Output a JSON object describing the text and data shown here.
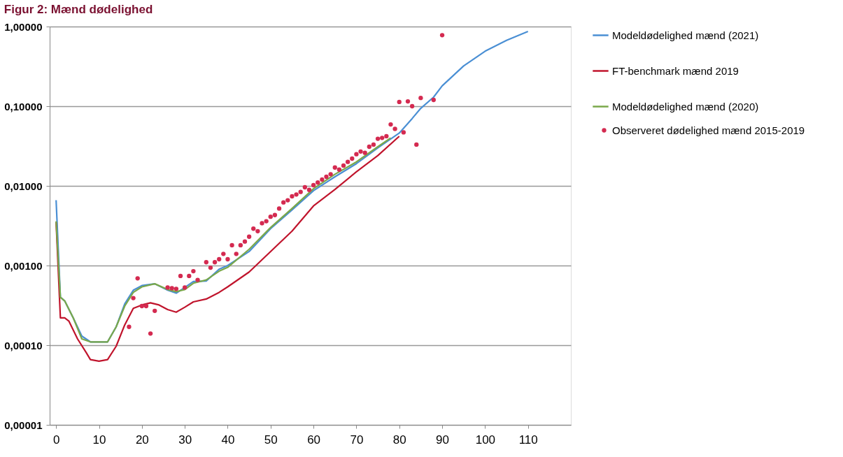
{
  "chart_data": {
    "type": "line",
    "title": "Figur 2: Mænd dødelighed",
    "xlim": [
      -1.5,
      120
    ],
    "xticks": [
      0,
      10,
      20,
      30,
      40,
      50,
      60,
      70,
      80,
      90,
      100,
      110
    ],
    "ylim": [
      1e-05,
      1
    ],
    "log": "y",
    "yticks": [
      {
        "value": 1e-05,
        "label": "0,00001"
      },
      {
        "value": 0.0001,
        "label": "0,00010"
      },
      {
        "value": 0.001,
        "label": "0,00100"
      },
      {
        "value": 0.01,
        "label": "0,01000"
      },
      {
        "value": 0.1,
        "label": "0,10000"
      },
      {
        "value": 1,
        "label": "1,00000"
      }
    ],
    "grid": "y",
    "legend": "right",
    "marker": "none",
    "line_style": "solid",
    "series": [
      {
        "name": "Modeldødelighed mænd (2021)",
        "color": "#4a8fd4",
        "x": [
          0,
          1,
          2,
          4,
          6,
          8,
          10,
          12,
          14,
          16,
          18,
          20,
          23,
          26,
          28,
          30,
          32,
          35,
          38,
          40,
          45,
          50,
          55,
          60,
          65,
          70,
          75,
          80,
          83,
          85,
          88,
          90,
          95,
          100,
          105,
          110
        ],
        "values": [
          0.0066,
          0.0004,
          0.00036,
          0.00022,
          0.00013,
          0.00011,
          0.00011,
          0.00011,
          0.00017,
          0.00033,
          0.00049,
          0.00056,
          0.00059,
          0.00049,
          0.00045,
          0.00053,
          0.00063,
          0.00064,
          0.0009,
          0.001,
          0.0015,
          0.0029,
          0.005,
          0.0087,
          0.013,
          0.019,
          0.03,
          0.046,
          0.07,
          0.094,
          0.13,
          0.18,
          0.32,
          0.49,
          0.67,
          0.87
        ]
      },
      {
        "name": "FT-benchmark mænd 2019",
        "color": "#c0142c",
        "x": [
          0,
          1,
          2,
          3,
          5,
          7,
          8,
          10,
          12,
          14,
          16,
          18,
          20,
          22,
          24,
          26,
          28,
          30,
          32,
          35,
          38,
          40,
          45,
          50,
          55,
          60,
          65,
          70,
          75,
          80
        ],
        "values": [
          0.0035,
          0.00022,
          0.00022,
          0.0002,
          0.00012,
          8.1e-05,
          6.6e-05,
          6.3e-05,
          6.6e-05,
          9.7e-05,
          0.00018,
          0.00029,
          0.00032,
          0.00034,
          0.00032,
          0.00028,
          0.00026,
          0.0003,
          0.00035,
          0.00038,
          0.00046,
          0.00054,
          0.00083,
          0.0015,
          0.0027,
          0.0056,
          0.009,
          0.015,
          0.024,
          0.042
        ]
      },
      {
        "name": "Modeldødelighed mænd (2020)",
        "color": "#7aa84a",
        "x": [
          0,
          1,
          2,
          4,
          6,
          8,
          10,
          12,
          14,
          16,
          18,
          20,
          23,
          26,
          28,
          30,
          32,
          35,
          38,
          40,
          45,
          50,
          55,
          60,
          65,
          70,
          75,
          78
        ],
        "values": [
          0.0036,
          0.0004,
          0.00036,
          0.00022,
          0.00012,
          0.00011,
          0.00011,
          0.00011,
          0.00017,
          0.00031,
          0.00046,
          0.00054,
          0.00059,
          0.0005,
          0.00047,
          0.0005,
          0.0006,
          0.00066,
          0.00085,
          0.00095,
          0.0016,
          0.003,
          0.0052,
          0.0092,
          0.014,
          0.02,
          0.031,
          0.04
        ]
      },
      {
        "name": "Observeret dødelighed mænd 2015-2019",
        "type": "scatter",
        "marker": "circle",
        "color": "#d42a50",
        "x": [
          17,
          18,
          19,
          20,
          21,
          22,
          23,
          26,
          27,
          28,
          29,
          30,
          31,
          32,
          33,
          35,
          36,
          37,
          38,
          39,
          40,
          41,
          42,
          43,
          44,
          45,
          46,
          47,
          48,
          49,
          50,
          51,
          52,
          53,
          54,
          55,
          56,
          57,
          58,
          59,
          60,
          61,
          62,
          63,
          64,
          65,
          66,
          67,
          68,
          69,
          70,
          71,
          72,
          73,
          74,
          75,
          76,
          77,
          78,
          79,
          80,
          81,
          82,
          83,
          84,
          85,
          88,
          90
        ],
        "values": [
          0.00017,
          0.00039,
          0.00069,
          0.00031,
          0.00031,
          0.00014,
          0.00027,
          0.00053,
          0.00052,
          0.00051,
          0.00074,
          0.00053,
          0.00074,
          0.00085,
          0.00066,
          0.0011,
          0.00094,
          0.0011,
          0.0012,
          0.0014,
          0.0012,
          0.0018,
          0.0014,
          0.0018,
          0.002,
          0.0023,
          0.0029,
          0.0027,
          0.0034,
          0.0036,
          0.0041,
          0.0043,
          0.0052,
          0.0062,
          0.0066,
          0.0074,
          0.0078,
          0.0084,
          0.0096,
          0.0089,
          0.0102,
          0.011,
          0.012,
          0.013,
          0.014,
          0.017,
          0.016,
          0.018,
          0.02,
          0.022,
          0.025,
          0.027,
          0.026,
          0.031,
          0.033,
          0.039,
          0.04,
          0.042,
          0.059,
          0.052,
          0.113,
          0.047,
          0.115,
          0.1,
          0.033,
          0.127,
          0.12,
          0.78
        ]
      }
    ]
  }
}
